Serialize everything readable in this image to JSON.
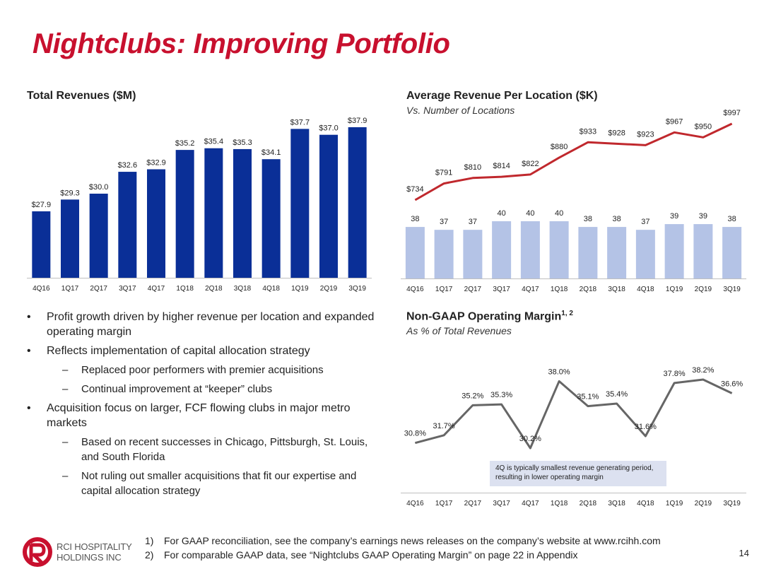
{
  "title": "Nightclubs: Improving Portfolio",
  "page_number": "14",
  "colors": {
    "title_red": "#C8102E",
    "bar_navy": "#0A2F97",
    "bar_light": "#B4C3E6",
    "line_red": "#C0282D",
    "line_gray": "#666666"
  },
  "chart_data": [
    {
      "type": "bar",
      "title": "Total Revenues ($M)",
      "categories": [
        "4Q16",
        "1Q17",
        "2Q17",
        "3Q17",
        "4Q17",
        "1Q18",
        "2Q18",
        "3Q18",
        "4Q18",
        "1Q19",
        "2Q19",
        "3Q19"
      ],
      "values": [
        27.9,
        29.3,
        30.0,
        32.6,
        32.9,
        35.2,
        35.4,
        35.3,
        34.1,
        37.7,
        37.0,
        37.9
      ],
      "labels": [
        "$27.9",
        "$29.3",
        "$30.0",
        "$32.6",
        "$32.9",
        "$35.2",
        "$35.4",
        "$35.3",
        "$34.1",
        "$37.7",
        "$37.0",
        "$37.9"
      ],
      "ylim": [
        20,
        40
      ]
    },
    {
      "type": "line+bar",
      "title": "Average Revenue Per Location ($K)",
      "subtitle": "Vs. Number of Locations",
      "categories": [
        "4Q16",
        "1Q17",
        "2Q17",
        "3Q17",
        "4Q17",
        "1Q18",
        "2Q18",
        "3Q18",
        "4Q18",
        "1Q19",
        "2Q19",
        "3Q19"
      ],
      "series": [
        {
          "name": "Average Revenue Per Location",
          "type": "line",
          "values": [
            734,
            791,
            810,
            814,
            822,
            880,
            933,
            928,
            923,
            967,
            950,
            997
          ],
          "labels": [
            "$734",
            "$791",
            "$810",
            "$814",
            "$822",
            "$880",
            "$933",
            "$928",
            "$923",
            "$967",
            "$950",
            "$997"
          ]
        },
        {
          "name": "Number of Locations",
          "type": "bar",
          "values": [
            38,
            37,
            37,
            40,
            40,
            40,
            38,
            38,
            37,
            39,
            39,
            38
          ],
          "labels": [
            "38",
            "37",
            "37",
            "40",
            "40",
            "40",
            "38",
            "38",
            "37",
            "39",
            "39",
            "38"
          ]
        }
      ]
    },
    {
      "type": "line",
      "title": "Non-GAAP Operating Margin",
      "title_sup": "1, 2",
      "subtitle": "As % of Total Revenues",
      "categories": [
        "4Q16",
        "1Q17",
        "2Q17",
        "3Q17",
        "4Q17",
        "1Q18",
        "2Q18",
        "3Q18",
        "4Q18",
        "1Q19",
        "2Q19",
        "3Q19"
      ],
      "values": [
        30.8,
        31.7,
        35.2,
        35.3,
        30.2,
        38.0,
        35.1,
        35.4,
        31.6,
        37.8,
        38.2,
        36.6
      ],
      "labels": [
        "30.8%",
        "31.7%",
        "35.2%",
        "35.3%",
        "30.2%",
        "38.0%",
        "35.1%",
        "35.4%",
        "31.6%",
        "37.8%",
        "38.2%",
        "36.6%"
      ],
      "annotation": "4Q is typically smallest revenue generating period, resulting in lower operating margin"
    }
  ],
  "bullets": [
    {
      "text": "Profit growth driven by higher revenue per location and expanded operating margin",
      "subs": []
    },
    {
      "text": "Reflects implementation of capital allocation strategy",
      "subs": [
        "Replaced poor performers with premier acquisitions",
        "Continual improvement at “keeper” clubs"
      ]
    },
    {
      "text": "Acquisition focus on larger, FCF flowing clubs in major metro markets",
      "subs": [
        "Based on recent successes in Chicago, Pittsburgh, St. Louis, and South Florida",
        "Not ruling out smaller acquisitions that fit our expertise and capital allocation strategy"
      ]
    }
  ],
  "bullet_marker": "•",
  "sub_marker": "–",
  "footnotes": [
    {
      "num": "1)",
      "text": "For GAAP reconciliation, see the company’s earnings news releases on the company’s website at www.rcihh.com"
    },
    {
      "num": "2)",
      "text": "For comparable GAAP data, see “Nightclubs GAAP Operating Margin” on page 22 in Appendix"
    }
  ],
  "logo": {
    "line1": "RCI HOSPITALITY",
    "line2": "HOLDINGS INC"
  }
}
